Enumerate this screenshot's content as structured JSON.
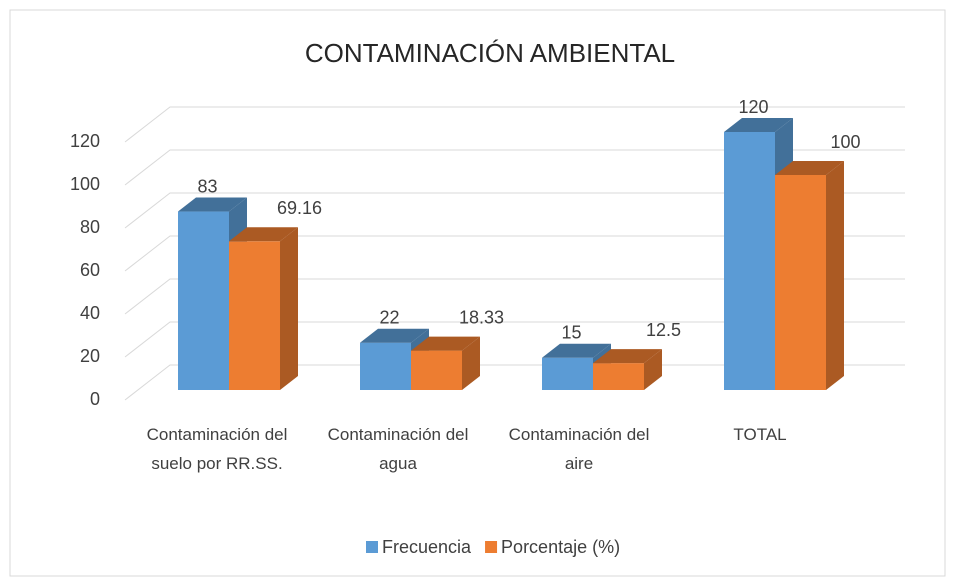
{
  "chart_data": {
    "type": "bar3d",
    "title": "CONTAMINACIÓN AMBIENTAL",
    "categories": [
      "Contaminación del suelo por RR.SS.",
      "Contaminación del agua",
      "Contaminación del aire",
      "TOTAL"
    ],
    "series": [
      {
        "name": "Frecuencia",
        "color": "#5B9BD5",
        "values": [
          83,
          22,
          15,
          120
        ]
      },
      {
        "name": "Porcentaje (%)",
        "color": "#ED7D31",
        "values": [
          69.16,
          18.33,
          12.5,
          100
        ]
      }
    ],
    "ylim": [
      0,
      120
    ],
    "yticks": [
      0,
      20,
      40,
      60,
      80,
      100,
      120
    ],
    "grid": true,
    "legend": "bottom"
  }
}
